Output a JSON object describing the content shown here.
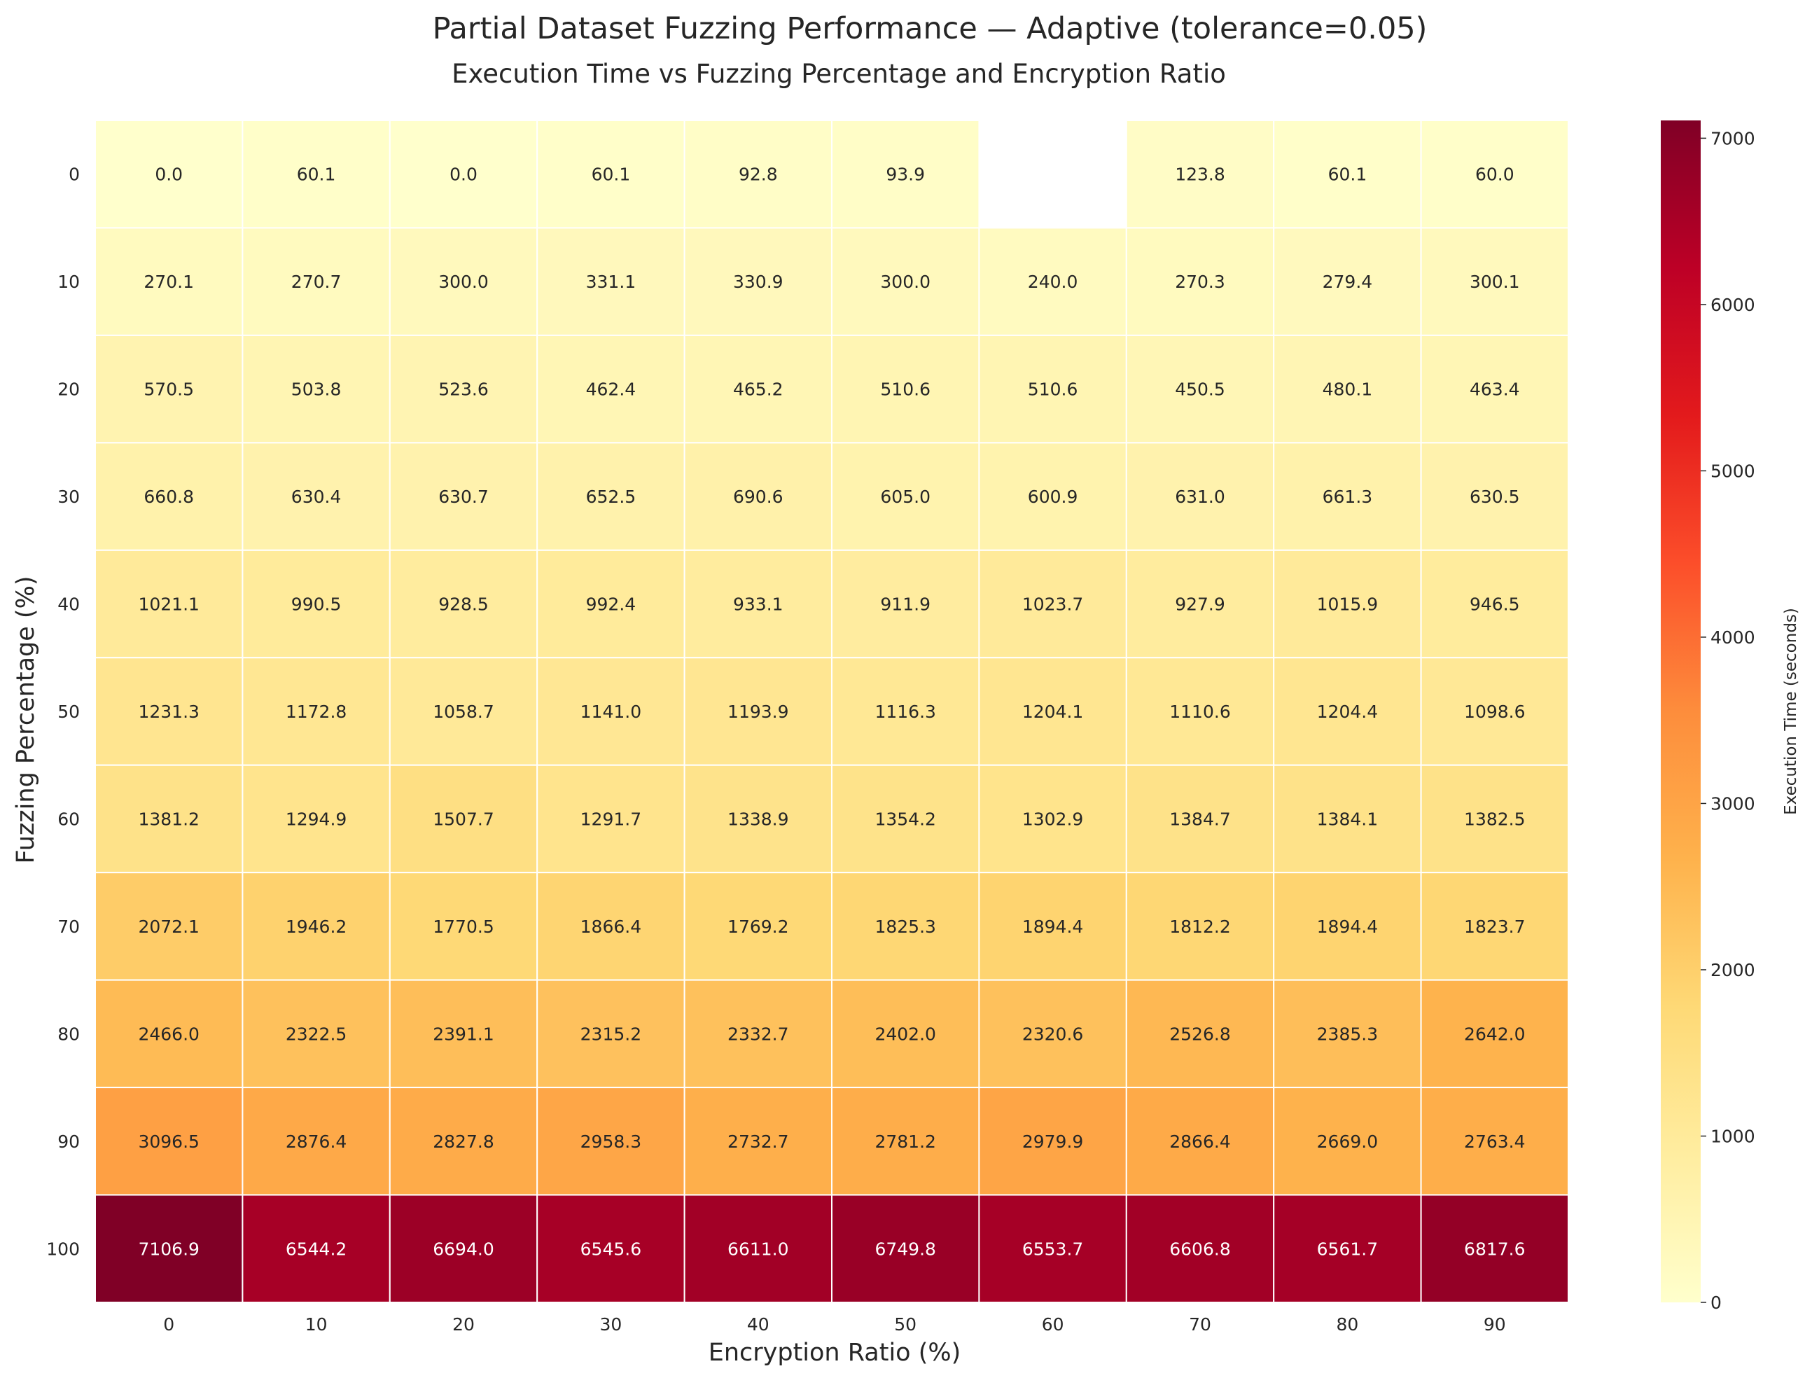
{
  "chart_data": {
    "type": "heatmap",
    "title": "Partial Dataset Fuzzing Performance — Adaptive (tolerance=0.05)",
    "subtitle": "Execution Time vs Fuzzing Percentage and Encryption Ratio",
    "xlabel": "Encryption Ratio (%)",
    "ylabel": "Fuzzing Percentage (%)",
    "x": [
      "0",
      "10",
      "20",
      "30",
      "40",
      "50",
      "60",
      "70",
      "80",
      "90"
    ],
    "y": [
      "0",
      "10",
      "20",
      "30",
      "40",
      "50",
      "60",
      "70",
      "80",
      "90",
      "100"
    ],
    "values": [
      [
        0.0,
        60.1,
        0.0,
        60.1,
        92.8,
        93.9,
        null,
        123.8,
        60.1,
        60.0
      ],
      [
        270.1,
        270.7,
        300.0,
        331.1,
        330.9,
        300.0,
        240.0,
        270.3,
        279.4,
        300.1
      ],
      [
        570.5,
        503.8,
        523.6,
        462.4,
        465.2,
        510.6,
        510.6,
        450.5,
        480.1,
        463.4
      ],
      [
        660.8,
        630.4,
        630.7,
        652.5,
        690.6,
        605.0,
        600.9,
        631.0,
        661.3,
        630.5
      ],
      [
        1021.1,
        990.5,
        928.5,
        992.4,
        933.1,
        911.9,
        1023.7,
        927.9,
        1015.9,
        946.5
      ],
      [
        1231.3,
        1172.8,
        1058.7,
        1141.0,
        1193.9,
        1116.3,
        1204.1,
        1110.6,
        1204.4,
        1098.6
      ],
      [
        1381.2,
        1294.9,
        1507.7,
        1291.7,
        1338.9,
        1354.2,
        1302.9,
        1384.7,
        1384.1,
        1382.5
      ],
      [
        2072.1,
        1946.2,
        1770.5,
        1866.4,
        1769.2,
        1825.3,
        1894.4,
        1812.2,
        1894.4,
        1823.7
      ],
      [
        2466.0,
        2322.5,
        2391.1,
        2315.2,
        2332.7,
        2402.0,
        2320.6,
        2526.8,
        2385.3,
        2642.0
      ],
      [
        3096.5,
        2876.4,
        2827.8,
        2958.3,
        2732.7,
        2781.2,
        2979.9,
        2866.4,
        2669.0,
        2763.4
      ],
      [
        7106.9,
        6544.2,
        6694.0,
        6545.6,
        6611.0,
        6749.8,
        6553.7,
        6606.8,
        6561.7,
        6817.6
      ]
    ],
    "colormap": "YlOrRd",
    "colorbar": {
      "label": "Execution Time (seconds)",
      "range": [
        0,
        7106.9
      ],
      "ticks": [
        0,
        1000,
        2000,
        3000,
        4000,
        5000,
        6000,
        7000
      ]
    },
    "grid": false
  }
}
